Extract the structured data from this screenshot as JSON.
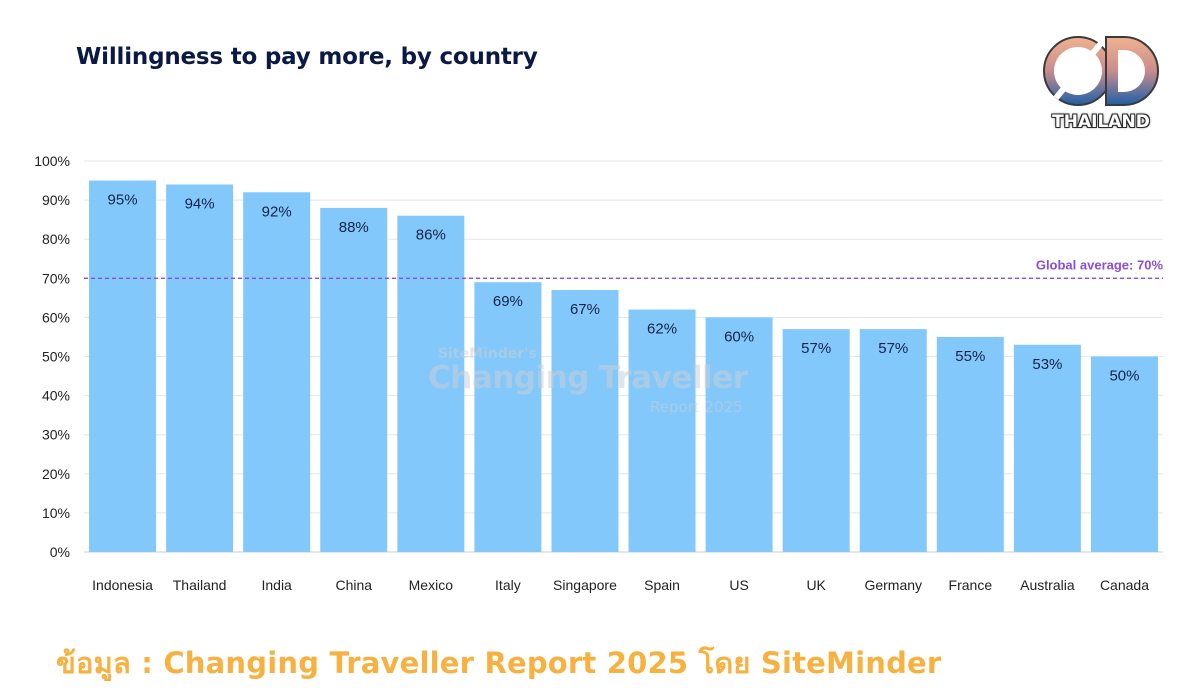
{
  "chart_data": {
    "type": "bar",
    "title": "Willingness to pay more, by country",
    "categories": [
      "Indonesia",
      "Thailand",
      "India",
      "China",
      "Mexico",
      "Italy",
      "Singapore",
      "Spain",
      "US",
      "UK",
      "Germany",
      "France",
      "Australia",
      "Canada"
    ],
    "values": [
      95,
      94,
      92,
      88,
      86,
      69,
      67,
      62,
      60,
      57,
      57,
      55,
      53,
      50
    ],
    "data_labels": [
      "95%",
      "94%",
      "92%",
      "88%",
      "86%",
      "69%",
      "67%",
      "62%",
      "60%",
      "57%",
      "57%",
      "55%",
      "53%",
      "50%"
    ],
    "y_ticks": [
      "0%",
      "10%",
      "20%",
      "30%",
      "40%",
      "50%",
      "60%",
      "70%",
      "80%",
      "90%",
      "100%"
    ],
    "ylim": [
      0,
      100
    ],
    "xlabel": "",
    "ylabel": "",
    "grid": true,
    "reference_line": {
      "value": 70,
      "label": "Global average: 70%",
      "color": "#8a4fd8"
    },
    "bar_color": "#83c8fb"
  },
  "watermark": {
    "line1": "SiteMinder's",
    "line2": "Changing Traveller",
    "line3": "Report 2025"
  },
  "logo": {
    "text": "THAILAND"
  },
  "source_text": "ข้อมูล : Changing Traveller Report 2025  โดย SiteMinder",
  "colors": {
    "title": "#0b1a45",
    "source": "#f7b140",
    "grid": "#e3e5ea"
  }
}
